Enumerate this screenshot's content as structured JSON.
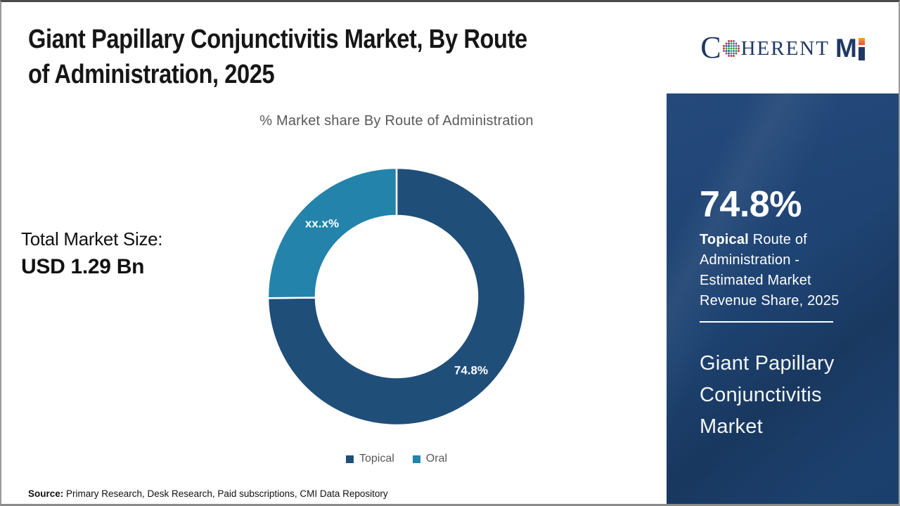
{
  "header": {
    "title_line1": "Giant Papillary Conjunctivitis Market, By Route",
    "title_line2": "of Administration, 2025",
    "subtitle": "% Market share By Route of Administration"
  },
  "logo": {
    "part_c": "C",
    "part_rest": "HERENT",
    "part_m": "M",
    "globe_icon": "coherent-globe-icon",
    "navy": "#1f3864",
    "orange": "#e2572b"
  },
  "total_market": {
    "label": "Total Market Size:",
    "value": "USD 1.29 Bn"
  },
  "chart_data": {
    "type": "pie",
    "subtype": "donut",
    "title": "% Market share By Route of Administration",
    "categories": [
      "Topical",
      "Oral"
    ],
    "values": [
      74.8,
      25.2
    ],
    "data_labels": [
      "74.8%",
      "xx.x%"
    ],
    "colors": [
      "#1f4e79",
      "#2383aa"
    ],
    "start_angle_deg": 0,
    "clockwise": true,
    "inner_radius_ratio": 0.63,
    "slice_border_color": "#ffffff",
    "legend_position": "bottom",
    "note": "Oral share shown masked as xx.x% in source image"
  },
  "sidebar": {
    "stat_value": "74.8%",
    "desc_bold": "Topical",
    "desc_rest": " Route of Administration - Estimated Market Revenue Share, 2025",
    "market_name": "Giant Papillary Conjunctivitis Market",
    "bg_color": "#1e4372"
  },
  "footer": {
    "source_label": "Source:",
    "source_text": " Primary Research, Desk Research, Paid subscriptions, CMI Data Repository"
  }
}
